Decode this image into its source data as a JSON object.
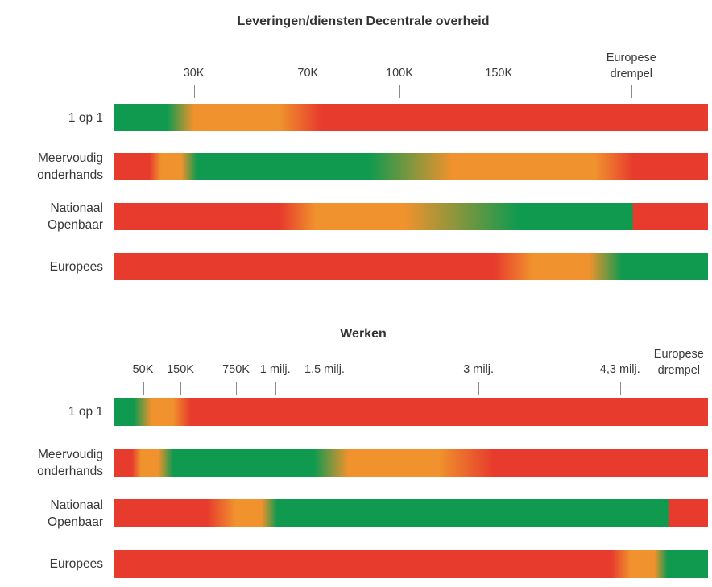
{
  "palette": {
    "green": "#109a4f",
    "orange": "#f0922d",
    "red": "#e73b2d"
  },
  "ui": {
    "tick_color": "#8a8a8a",
    "text_color": "#383838"
  },
  "chart_data": [
    {
      "type": "heatmap",
      "title": "Leveringen/diensten Decentrale overheid",
      "x_axis_note": "contract value thresholds, color = applicability of procedure (green=allowed, orange=transition, red=not applicable)",
      "x_ticks": [
        {
          "label": "30K",
          "pos_pct": 13.5
        },
        {
          "label": "70K",
          "pos_pct": 32.7
        },
        {
          "label": "100K",
          "pos_pct": 48.1
        },
        {
          "label": "150K",
          "pos_pct": 64.8
        },
        {
          "label": "Europese drempel",
          "pos_pct": 87.1,
          "two_line": true
        }
      ],
      "rows": [
        {
          "label": "1 op 1",
          "stops": [
            [
              "green",
              0
            ],
            [
              "green",
              9
            ],
            [
              "orange",
              13.5
            ],
            [
              "orange",
              28
            ],
            [
              "red",
              35
            ],
            [
              "red",
              100
            ]
          ]
        },
        {
          "label": "Meervoudig onderhands",
          "stops": [
            [
              "red",
              0
            ],
            [
              "red",
              6
            ],
            [
              "orange",
              8
            ],
            [
              "orange",
              11.4
            ],
            [
              "green",
              14
            ],
            [
              "green",
              43
            ],
            [
              "orange",
              57
            ],
            [
              "orange",
              81
            ],
            [
              "red",
              87.5
            ],
            [
              "red",
              100
            ]
          ]
        },
        {
          "label": "Nationaal Openbaar",
          "stops": [
            [
              "red",
              0
            ],
            [
              "red",
              28
            ],
            [
              "orange",
              34
            ],
            [
              "orange",
              49
            ],
            [
              "green",
              68
            ],
            [
              "green",
              87.3
            ],
            [
              "red",
              87.4
            ],
            [
              "red",
              100
            ]
          ]
        },
        {
          "label": "Europees",
          "stops": [
            [
              "red",
              0
            ],
            [
              "red",
              64
            ],
            [
              "orange",
              70.5
            ],
            [
              "orange",
              80
            ],
            [
              "green",
              85.5
            ],
            [
              "green",
              100
            ]
          ]
        }
      ]
    },
    {
      "type": "heatmap",
      "title": "Werken",
      "x_axis_note": "contract value thresholds, color = applicability of procedure (green=allowed, orange=transition, red=not applicable)",
      "x_ticks": [
        {
          "label": "50K",
          "pos_pct": 4.95
        },
        {
          "label": "150K",
          "pos_pct": 11.25
        },
        {
          "label": "750K",
          "pos_pct": 20.6
        },
        {
          "label": "1 milj.",
          "pos_pct": 27.2
        },
        {
          "label": "1,5 milj.",
          "pos_pct": 35.5
        },
        {
          "label": "3 milj.",
          "pos_pct": 61.4
        },
        {
          "label": "4,3 milj.",
          "pos_pct": 85.2
        },
        {
          "label": "Europese drempel",
          "pos_pct": 93.3,
          "label_pos_pct": 95.1,
          "two_line": true
        }
      ],
      "rows": [
        {
          "label": "1 op 1",
          "stops": [
            [
              "green",
              0
            ],
            [
              "green",
              3.4
            ],
            [
              "orange",
              6.4
            ],
            [
              "orange",
              10
            ],
            [
              "red",
              13
            ],
            [
              "red",
              100
            ]
          ]
        },
        {
          "label": "Meervoudig onderhands",
          "stops": [
            [
              "red",
              0
            ],
            [
              "red",
              3.1
            ],
            [
              "orange",
              4.6
            ],
            [
              "orange",
              7.5
            ],
            [
              "green",
              10
            ],
            [
              "green",
              33.7
            ],
            [
              "orange",
              39.5
            ],
            [
              "orange",
              54.7
            ],
            [
              "red",
              64
            ],
            [
              "red",
              100
            ]
          ]
        },
        {
          "label": "Nationaal Openbaar",
          "stops": [
            [
              "red",
              0
            ],
            [
              "red",
              15.7
            ],
            [
              "orange",
              20.5
            ],
            [
              "orange",
              24.9
            ],
            [
              "green",
              27.5
            ],
            [
              "green",
              93.3
            ],
            [
              "red",
              93.4
            ],
            [
              "red",
              100
            ]
          ]
        },
        {
          "label": "Europees",
          "stops": [
            [
              "red",
              0
            ],
            [
              "red",
              83.7
            ],
            [
              "orange",
              87
            ],
            [
              "orange",
              91
            ],
            [
              "green",
              93.2
            ],
            [
              "green",
              100
            ]
          ]
        }
      ]
    }
  ]
}
